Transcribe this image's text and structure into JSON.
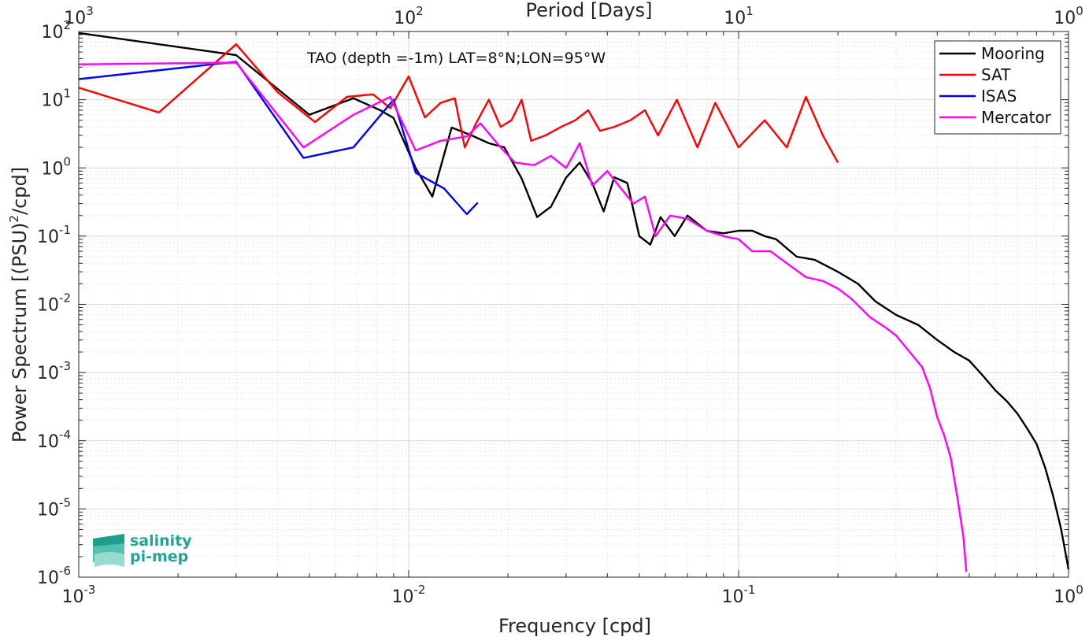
{
  "chart_data": {
    "type": "line",
    "annotation": "TAO (depth =-1m) LAT=8°N;LON=95°W",
    "xlabel": "Frequency [cpd]",
    "ylabel": "Power Spectrum [(PSU)²/cpd]",
    "ylabel_parts": {
      "before": "Power Spectrum [(PSU)",
      "sup": "2",
      "after": "/cpd]"
    },
    "top_xlabel": "Period [Days]",
    "xscale": "log",
    "yscale": "log",
    "xlim": [
      0.001,
      1
    ],
    "ylim": [
      1e-06,
      100
    ],
    "grid": true,
    "legend_position": "top-right",
    "x_ticks": [
      {
        "base": "10",
        "exp": "-3"
      },
      {
        "base": "10",
        "exp": "-2"
      },
      {
        "base": "10",
        "exp": "-1"
      },
      {
        "base": "10",
        "exp": "0"
      }
    ],
    "top_x_ticks": [
      {
        "base": "10",
        "exp": "3"
      },
      {
        "base": "10",
        "exp": "2"
      },
      {
        "base": "10",
        "exp": "1"
      },
      {
        "base": "10",
        "exp": "0"
      }
    ],
    "y_ticks": [
      {
        "base": "10",
        "exp": "-6"
      },
      {
        "base": "10",
        "exp": "-5"
      },
      {
        "base": "10",
        "exp": "-4"
      },
      {
        "base": "10",
        "exp": "-3"
      },
      {
        "base": "10",
        "exp": "-2"
      },
      {
        "base": "10",
        "exp": "-1"
      },
      {
        "base": "10",
        "exp": "0"
      },
      {
        "base": "10",
        "exp": "1"
      },
      {
        "base": "10",
        "exp": "2"
      }
    ],
    "series": [
      {
        "name": "Mooring",
        "color": "#000000",
        "points": [
          [
            0.001,
            95
          ],
          [
            0.003,
            45
          ],
          [
            0.005,
            6
          ],
          [
            0.0068,
            10.5
          ],
          [
            0.0082,
            7
          ],
          [
            0.009,
            5.4
          ],
          [
            0.0105,
            1
          ],
          [
            0.0118,
            0.38
          ],
          [
            0.0135,
            3.9
          ],
          [
            0.0155,
            3
          ],
          [
            0.0175,
            2.3
          ],
          [
            0.0195,
            2
          ],
          [
            0.022,
            0.7
          ],
          [
            0.0245,
            0.19
          ],
          [
            0.027,
            0.27
          ],
          [
            0.03,
            0.72
          ],
          [
            0.033,
            1.2
          ],
          [
            0.036,
            0.6
          ],
          [
            0.039,
            0.23
          ],
          [
            0.042,
            0.73
          ],
          [
            0.046,
            0.6
          ],
          [
            0.05,
            0.1
          ],
          [
            0.054,
            0.075
          ],
          [
            0.058,
            0.19
          ],
          [
            0.064,
            0.1
          ],
          [
            0.07,
            0.2
          ],
          [
            0.08,
            0.12
          ],
          [
            0.09,
            0.11
          ],
          [
            0.1,
            0.12
          ],
          [
            0.11,
            0.12
          ],
          [
            0.12,
            0.1
          ],
          [
            0.13,
            0.09
          ],
          [
            0.15,
            0.05
          ],
          [
            0.17,
            0.045
          ],
          [
            0.2,
            0.03
          ],
          [
            0.23,
            0.02
          ],
          [
            0.26,
            0.011
          ],
          [
            0.3,
            0.007
          ],
          [
            0.35,
            0.005
          ],
          [
            0.4,
            0.003
          ],
          [
            0.45,
            0.002
          ],
          [
            0.5,
            0.0015
          ],
          [
            0.55,
            0.0009
          ],
          [
            0.6,
            0.00055
          ],
          [
            0.65,
            0.00038
          ],
          [
            0.7,
            0.00025
          ],
          [
            0.75,
            0.00015
          ],
          [
            0.8,
            9e-05
          ],
          [
            0.85,
            4e-05
          ],
          [
            0.9,
            1.5e-05
          ],
          [
            0.95,
            5e-06
          ],
          [
            1.0,
            1.3e-06
          ]
        ]
      },
      {
        "name": "SAT",
        "color": "#ff0000",
        "points": [
          [
            0.001,
            15
          ],
          [
            0.00175,
            6.5
          ],
          [
            0.003,
            65
          ],
          [
            0.004,
            13
          ],
          [
            0.0052,
            4.7
          ],
          [
            0.0065,
            11
          ],
          [
            0.0078,
            12
          ],
          [
            0.0088,
            7.5
          ],
          [
            0.01,
            22
          ],
          [
            0.0112,
            5.5
          ],
          [
            0.0125,
            9
          ],
          [
            0.0138,
            10.5
          ],
          [
            0.0148,
            2
          ],
          [
            0.016,
            4.5
          ],
          [
            0.0175,
            10
          ],
          [
            0.019,
            4
          ],
          [
            0.0205,
            5
          ],
          [
            0.022,
            10
          ],
          [
            0.0235,
            2.5
          ],
          [
            0.026,
            3
          ],
          [
            0.029,
            4
          ],
          [
            0.032,
            5
          ],
          [
            0.035,
            7
          ],
          [
            0.038,
            3.5
          ],
          [
            0.042,
            4
          ],
          [
            0.047,
            5
          ],
          [
            0.052,
            7
          ],
          [
            0.057,
            3
          ],
          [
            0.065,
            10
          ],
          [
            0.075,
            2
          ],
          [
            0.085,
            9
          ],
          [
            0.1,
            2
          ],
          [
            0.12,
            5
          ],
          [
            0.14,
            2
          ],
          [
            0.16,
            11
          ],
          [
            0.18,
            3
          ],
          [
            0.2,
            1.2
          ]
        ]
      },
      {
        "name": "ISAS",
        "color": "#0000ff",
        "points": [
          [
            0.001,
            20
          ],
          [
            0.003,
            36
          ],
          [
            0.0048,
            1.4
          ],
          [
            0.0068,
            2
          ],
          [
            0.009,
            10
          ],
          [
            0.0105,
            0.85
          ],
          [
            0.0128,
            0.5
          ],
          [
            0.015,
            0.21
          ],
          [
            0.0162,
            0.31
          ]
        ]
      },
      {
        "name": "Mercator",
        "color": "#ff00ff",
        "points": [
          [
            0.001,
            33
          ],
          [
            0.003,
            35
          ],
          [
            0.0048,
            2
          ],
          [
            0.0068,
            6
          ],
          [
            0.0088,
            11
          ],
          [
            0.0105,
            1.8
          ],
          [
            0.0125,
            2.5
          ],
          [
            0.015,
            2.9
          ],
          [
            0.0165,
            4.5
          ],
          [
            0.019,
            2
          ],
          [
            0.021,
            1.2
          ],
          [
            0.024,
            1.1
          ],
          [
            0.027,
            1.5
          ],
          [
            0.03,
            1
          ],
          [
            0.033,
            2.3
          ],
          [
            0.036,
            0.55
          ],
          [
            0.04,
            0.9
          ],
          [
            0.044,
            0.5
          ],
          [
            0.048,
            0.3
          ],
          [
            0.052,
            0.38
          ],
          [
            0.056,
            0.1
          ],
          [
            0.062,
            0.2
          ],
          [
            0.07,
            0.18
          ],
          [
            0.08,
            0.12
          ],
          [
            0.09,
            0.1
          ],
          [
            0.1,
            0.09
          ],
          [
            0.11,
            0.06
          ],
          [
            0.125,
            0.06
          ],
          [
            0.14,
            0.04
          ],
          [
            0.16,
            0.025
          ],
          [
            0.18,
            0.022
          ],
          [
            0.2,
            0.017
          ],
          [
            0.22,
            0.012
          ],
          [
            0.25,
            0.0065
          ],
          [
            0.28,
            0.0045
          ],
          [
            0.3,
            0.0035
          ],
          [
            0.33,
            0.002
          ],
          [
            0.36,
            0.0012
          ],
          [
            0.38,
            0.0006
          ],
          [
            0.4,
            0.00022
          ],
          [
            0.42,
            0.00012
          ],
          [
            0.44,
            5.5e-05
          ],
          [
            0.46,
            1.5e-05
          ],
          [
            0.48,
            4e-06
          ],
          [
            0.49,
            1.2e-06
          ]
        ]
      }
    ]
  },
  "logo": {
    "line1": "salinity",
    "line2": "pi-mep"
  }
}
